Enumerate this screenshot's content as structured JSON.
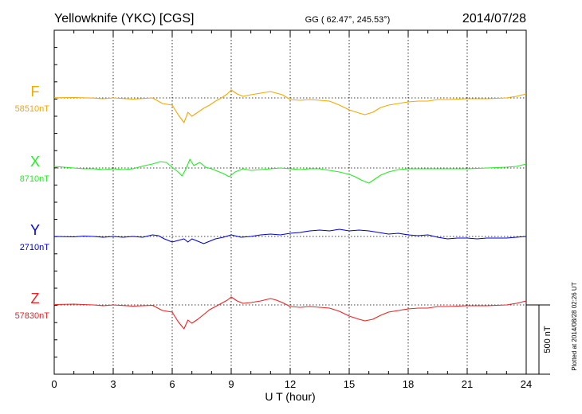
{
  "chart_data": {
    "type": "line",
    "title": "Yellowknife (YKC)  [CGS]",
    "coords": "GG ( 62.47°, 245.53°)",
    "date": "2014/07/28",
    "xlabel": "U T (hour)",
    "xlim": [
      0,
      24
    ],
    "x_ticks": [
      0,
      3,
      6,
      9,
      12,
      15,
      18,
      21,
      24
    ],
    "x_tick_labels": [
      "0",
      "3",
      "6",
      "9",
      "12",
      "15",
      "18",
      "21",
      "24"
    ],
    "grid": "dotted vertical at 3-hour intervals; dotted baseline per component",
    "scale_bar": {
      "label": "500 nT",
      "value": 500
    },
    "plotted_note": "Plotted at 2014/08/28 02:26 UT",
    "series": [
      {
        "name": "F",
        "baseline_label": "58510nT",
        "baseline": 58510,
        "color": "#f5a800",
        "points": [
          [
            0,
            58512
          ],
          [
            1,
            58515
          ],
          [
            2,
            58508
          ],
          [
            2.5,
            58500
          ],
          [
            3,
            58510
          ],
          [
            4,
            58495
          ],
          [
            5,
            58510
          ],
          [
            5.5,
            58440
          ],
          [
            6,
            58420
          ],
          [
            6.3,
            58300
          ],
          [
            6.6,
            58200
          ],
          [
            6.8,
            58330
          ],
          [
            7,
            58280
          ],
          [
            7.3,
            58330
          ],
          [
            7.6,
            58380
          ],
          [
            7.9,
            58420
          ],
          [
            8.2,
            58470
          ],
          [
            8.5,
            58510
          ],
          [
            8.8,
            58560
          ],
          [
            9,
            58610
          ],
          [
            9.3,
            58560
          ],
          [
            9.6,
            58530
          ],
          [
            10,
            58550
          ],
          [
            10.5,
            58570
          ],
          [
            11,
            58590
          ],
          [
            11.3,
            58570
          ],
          [
            11.6,
            58550
          ],
          [
            12,
            58490
          ],
          [
            12.5,
            58480
          ],
          [
            13,
            58490
          ],
          [
            13.5,
            58480
          ],
          [
            14,
            58470
          ],
          [
            14.5,
            58420
          ],
          [
            15,
            58360
          ],
          [
            15.5,
            58320
          ],
          [
            15.8,
            58300
          ],
          [
            16.2,
            58330
          ],
          [
            16.6,
            58390
          ],
          [
            17,
            58420
          ],
          [
            17.5,
            58440
          ],
          [
            18,
            58460
          ],
          [
            18.5,
            58470
          ],
          [
            19,
            58470
          ],
          [
            19.5,
            58490
          ],
          [
            20,
            58490
          ],
          [
            21,
            58500
          ],
          [
            22,
            58500
          ],
          [
            23,
            58510
          ],
          [
            23.5,
            58530
          ],
          [
            24,
            58560
          ]
        ]
      },
      {
        "name": "X",
        "baseline_label": "8710nT",
        "baseline": 8710,
        "color": "#22ee22",
        "points": [
          [
            0,
            8730
          ],
          [
            1,
            8710
          ],
          [
            1.5,
            8700
          ],
          [
            2,
            8700
          ],
          [
            2.5,
            8690
          ],
          [
            3,
            8700
          ],
          [
            3.5,
            8690
          ],
          [
            4,
            8700
          ],
          [
            4.3,
            8720
          ],
          [
            4.6,
            8740
          ],
          [
            5,
            8760
          ],
          [
            5.4,
            8790
          ],
          [
            5.7,
            8780
          ],
          [
            6,
            8720
          ],
          [
            6.3,
            8660
          ],
          [
            6.5,
            8610
          ],
          [
            6.7,
            8700
          ],
          [
            6.9,
            8820
          ],
          [
            7.1,
            8740
          ],
          [
            7.4,
            8780
          ],
          [
            7.7,
            8720
          ],
          [
            8,
            8700
          ],
          [
            8.3,
            8670
          ],
          [
            8.6,
            8640
          ],
          [
            8.9,
            8600
          ],
          [
            9.2,
            8660
          ],
          [
            9.6,
            8700
          ],
          [
            10,
            8680
          ],
          [
            10.5,
            8690
          ],
          [
            11,
            8700
          ],
          [
            11.5,
            8710
          ],
          [
            12,
            8700
          ],
          [
            12.5,
            8690
          ],
          [
            13,
            8700
          ],
          [
            13.5,
            8700
          ],
          [
            14,
            8680
          ],
          [
            14.5,
            8660
          ],
          [
            15,
            8630
          ],
          [
            15.3,
            8600
          ],
          [
            15.6,
            8560
          ],
          [
            16,
            8520
          ],
          [
            16.3,
            8570
          ],
          [
            16.6,
            8620
          ],
          [
            17,
            8660
          ],
          [
            17.5,
            8690
          ],
          [
            18,
            8700
          ],
          [
            19,
            8700
          ],
          [
            20,
            8700
          ],
          [
            21,
            8700
          ],
          [
            22,
            8710
          ],
          [
            23,
            8720
          ],
          [
            23.5,
            8730
          ],
          [
            24,
            8760
          ]
        ]
      },
      {
        "name": "Y",
        "baseline_label": "2710nT",
        "baseline": 2710,
        "color": "#0000dd",
        "points": [
          [
            0,
            2710
          ],
          [
            1,
            2705
          ],
          [
            1.5,
            2715
          ],
          [
            2,
            2710
          ],
          [
            2.5,
            2700
          ],
          [
            3,
            2710
          ],
          [
            3.5,
            2700
          ],
          [
            4,
            2710
          ],
          [
            4.5,
            2700
          ],
          [
            5,
            2730
          ],
          [
            5.3,
            2720
          ],
          [
            5.6,
            2680
          ],
          [
            6,
            2640
          ],
          [
            6.3,
            2660
          ],
          [
            6.6,
            2680
          ],
          [
            6.8,
            2640
          ],
          [
            7,
            2680
          ],
          [
            7.3,
            2650
          ],
          [
            7.6,
            2620
          ],
          [
            7.9,
            2650
          ],
          [
            8.2,
            2680
          ],
          [
            8.6,
            2700
          ],
          [
            9,
            2730
          ],
          [
            9.5,
            2700
          ],
          [
            10,
            2710
          ],
          [
            10.5,
            2730
          ],
          [
            11,
            2740
          ],
          [
            11.5,
            2730
          ],
          [
            12,
            2750
          ],
          [
            12.5,
            2760
          ],
          [
            13,
            2780
          ],
          [
            13.5,
            2790
          ],
          [
            14,
            2780
          ],
          [
            14.5,
            2800
          ],
          [
            15,
            2780
          ],
          [
            15.5,
            2790
          ],
          [
            16,
            2780
          ],
          [
            16.5,
            2760
          ],
          [
            17,
            2740
          ],
          [
            17.5,
            2750
          ],
          [
            18,
            2730
          ],
          [
            18.5,
            2720
          ],
          [
            19,
            2730
          ],
          [
            19.5,
            2700
          ],
          [
            20,
            2680
          ],
          [
            20.5,
            2690
          ],
          [
            21,
            2690
          ],
          [
            21.5,
            2680
          ],
          [
            22,
            2690
          ],
          [
            23,
            2690
          ],
          [
            23.5,
            2700
          ],
          [
            24,
            2710
          ]
        ]
      },
      {
        "name": "Z",
        "baseline_label": "57830nT",
        "baseline": 57830,
        "color": "#ee2222",
        "points": [
          [
            0,
            57835
          ],
          [
            1,
            57840
          ],
          [
            2,
            57830
          ],
          [
            2.5,
            57820
          ],
          [
            3,
            57830
          ],
          [
            4,
            57815
          ],
          [
            5,
            57825
          ],
          [
            5.5,
            57760
          ],
          [
            6,
            57740
          ],
          [
            6.3,
            57620
          ],
          [
            6.6,
            57530
          ],
          [
            6.8,
            57640
          ],
          [
            7,
            57600
          ],
          [
            7.3,
            57650
          ],
          [
            7.6,
            57710
          ],
          [
            7.9,
            57770
          ],
          [
            8.2,
            57810
          ],
          [
            8.5,
            57850
          ],
          [
            8.8,
            57890
          ],
          [
            9,
            57930
          ],
          [
            9.3,
            57880
          ],
          [
            9.6,
            57850
          ],
          [
            10,
            57860
          ],
          [
            10.5,
            57880
          ],
          [
            11,
            57910
          ],
          [
            11.3,
            57890
          ],
          [
            11.6,
            57860
          ],
          [
            12,
            57810
          ],
          [
            12.5,
            57800
          ],
          [
            13,
            57810
          ],
          [
            13.5,
            57800
          ],
          [
            14,
            57790
          ],
          [
            14.5,
            57750
          ],
          [
            15,
            57690
          ],
          [
            15.5,
            57650
          ],
          [
            15.8,
            57630
          ],
          [
            16.2,
            57650
          ],
          [
            16.6,
            57700
          ],
          [
            17,
            57740
          ],
          [
            17.5,
            57760
          ],
          [
            18,
            57780
          ],
          [
            18.5,
            57790
          ],
          [
            19,
            57790
          ],
          [
            19.5,
            57810
          ],
          [
            20,
            57810
          ],
          [
            21,
            57820
          ],
          [
            22,
            57820
          ],
          [
            23,
            57830
          ],
          [
            23.5,
            57850
          ],
          [
            24,
            57880
          ]
        ]
      }
    ]
  }
}
